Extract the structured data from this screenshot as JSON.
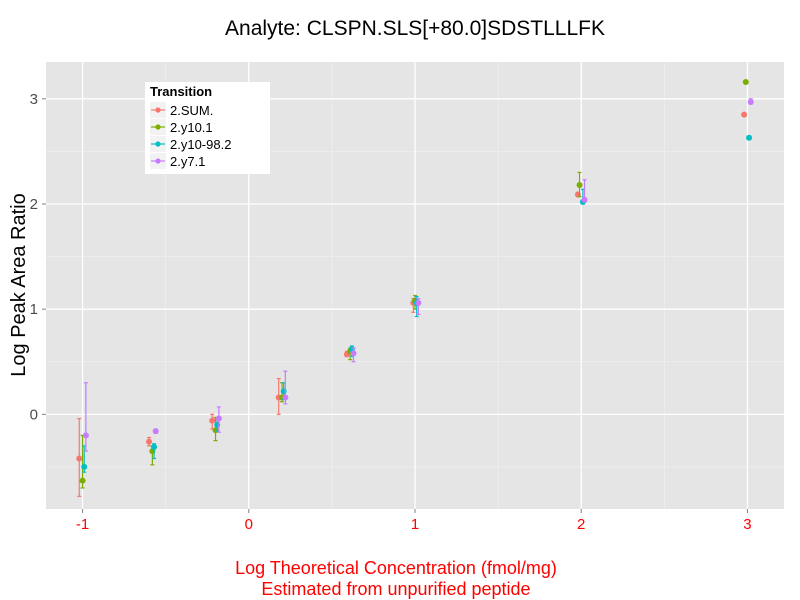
{
  "chart_data": {
    "type": "scatter",
    "title": "Analyte: CLSPN.SLS[+80.0]SDSTLLLFK",
    "xlabel": [
      "Log Theoretical Concentration (fmol/mg)",
      "Estimated from unpurified peptide"
    ],
    "ylabel": "Log Peak Area Ratio",
    "xlim": [
      -1.22,
      3.22
    ],
    "ylim": [
      -0.9,
      3.35
    ],
    "x_ticks": [
      -1,
      0,
      1,
      2,
      3
    ],
    "y_ticks": [
      0,
      1,
      2,
      3
    ],
    "grid": true,
    "legend_title": "Transition",
    "legend_position": "top-left",
    "series": [
      {
        "name": "2.SUM.",
        "color": "#F8766D",
        "points": [
          {
            "x": -1.02,
            "y": -0.42,
            "ymin": -0.78,
            "ymax": -0.04
          },
          {
            "x": -0.6,
            "y": -0.26,
            "ymin": -0.3,
            "ymax": -0.22
          },
          {
            "x": -0.22,
            "y": -0.06,
            "ymin": -0.14,
            "ymax": 0.0
          },
          {
            "x": 0.18,
            "y": 0.16,
            "ymin": 0.0,
            "ymax": 0.34
          },
          {
            "x": 0.59,
            "y": 0.57,
            "ymin": 0.55,
            "ymax": 0.6
          },
          {
            "x": 0.99,
            "y": 1.06,
            "ymin": 0.97,
            "ymax": 1.1
          },
          {
            "x": 1.98,
            "y": 2.09,
            "ymin": 2.07,
            "ymax": 2.11
          },
          {
            "x": 2.98,
            "y": 2.85,
            "ymin": 2.85,
            "ymax": 2.85
          }
        ]
      },
      {
        "name": "2.y10.1",
        "color": "#7CAE00",
        "points": [
          {
            "x": -1.0,
            "y": -0.63,
            "ymin": -0.7,
            "ymax": -0.2
          },
          {
            "x": -0.58,
            "y": -0.35,
            "ymin": -0.48,
            "ymax": -0.3
          },
          {
            "x": -0.2,
            "y": -0.15,
            "ymin": -0.25,
            "ymax": -0.03
          },
          {
            "x": 0.2,
            "y": 0.16,
            "ymin": 0.12,
            "ymax": 0.3
          },
          {
            "x": 0.61,
            "y": 0.6,
            "ymin": 0.52,
            "ymax": 0.63
          },
          {
            "x": 1.0,
            "y": 1.08,
            "ymin": 1.0,
            "ymax": 1.13
          },
          {
            "x": 1.99,
            "y": 2.18,
            "ymin": 2.07,
            "ymax": 2.3
          },
          {
            "x": 2.99,
            "y": 3.16,
            "ymin": 3.16,
            "ymax": 3.16
          }
        ]
      },
      {
        "name": "2.y10-98.2",
        "color": "#00BFC4",
        "points": [
          {
            "x": -0.99,
            "y": -0.5,
            "ymin": -0.55,
            "ymax": -0.3
          },
          {
            "x": -0.57,
            "y": -0.31,
            "ymin": -0.42,
            "ymax": -0.28
          },
          {
            "x": -0.19,
            "y": -0.1,
            "ymin": -0.16,
            "ymax": -0.05
          },
          {
            "x": 0.21,
            "y": 0.22,
            "ymin": 0.14,
            "ymax": 0.3
          },
          {
            "x": 0.62,
            "y": 0.62,
            "ymin": 0.55,
            "ymax": 0.65
          },
          {
            "x": 1.01,
            "y": 1.06,
            "ymin": 0.93,
            "ymax": 1.12
          },
          {
            "x": 2.01,
            "y": 2.02,
            "ymin": 2.0,
            "ymax": 2.14
          },
          {
            "x": 3.01,
            "y": 2.63,
            "ymin": 2.63,
            "ymax": 2.63
          }
        ]
      },
      {
        "name": "2.y7.1",
        "color": "#C77CFF",
        "points": [
          {
            "x": -0.98,
            "y": -0.2,
            "ymin": -0.35,
            "ymax": 0.3
          },
          {
            "x": -0.56,
            "y": -0.16,
            "ymin": -0.18,
            "ymax": -0.14
          },
          {
            "x": -0.18,
            "y": -0.04,
            "ymin": -0.17,
            "ymax": 0.07
          },
          {
            "x": 0.22,
            "y": 0.16,
            "ymin": 0.1,
            "ymax": 0.41
          },
          {
            "x": 0.63,
            "y": 0.58,
            "ymin": 0.5,
            "ymax": 0.63
          },
          {
            "x": 1.02,
            "y": 1.06,
            "ymin": 0.95,
            "ymax": 1.1
          },
          {
            "x": 2.02,
            "y": 2.04,
            "ymin": 2.02,
            "ymax": 2.23
          },
          {
            "x": 3.02,
            "y": 2.97,
            "ymin": 2.95,
            "ymax": 3.0
          }
        ]
      }
    ]
  }
}
